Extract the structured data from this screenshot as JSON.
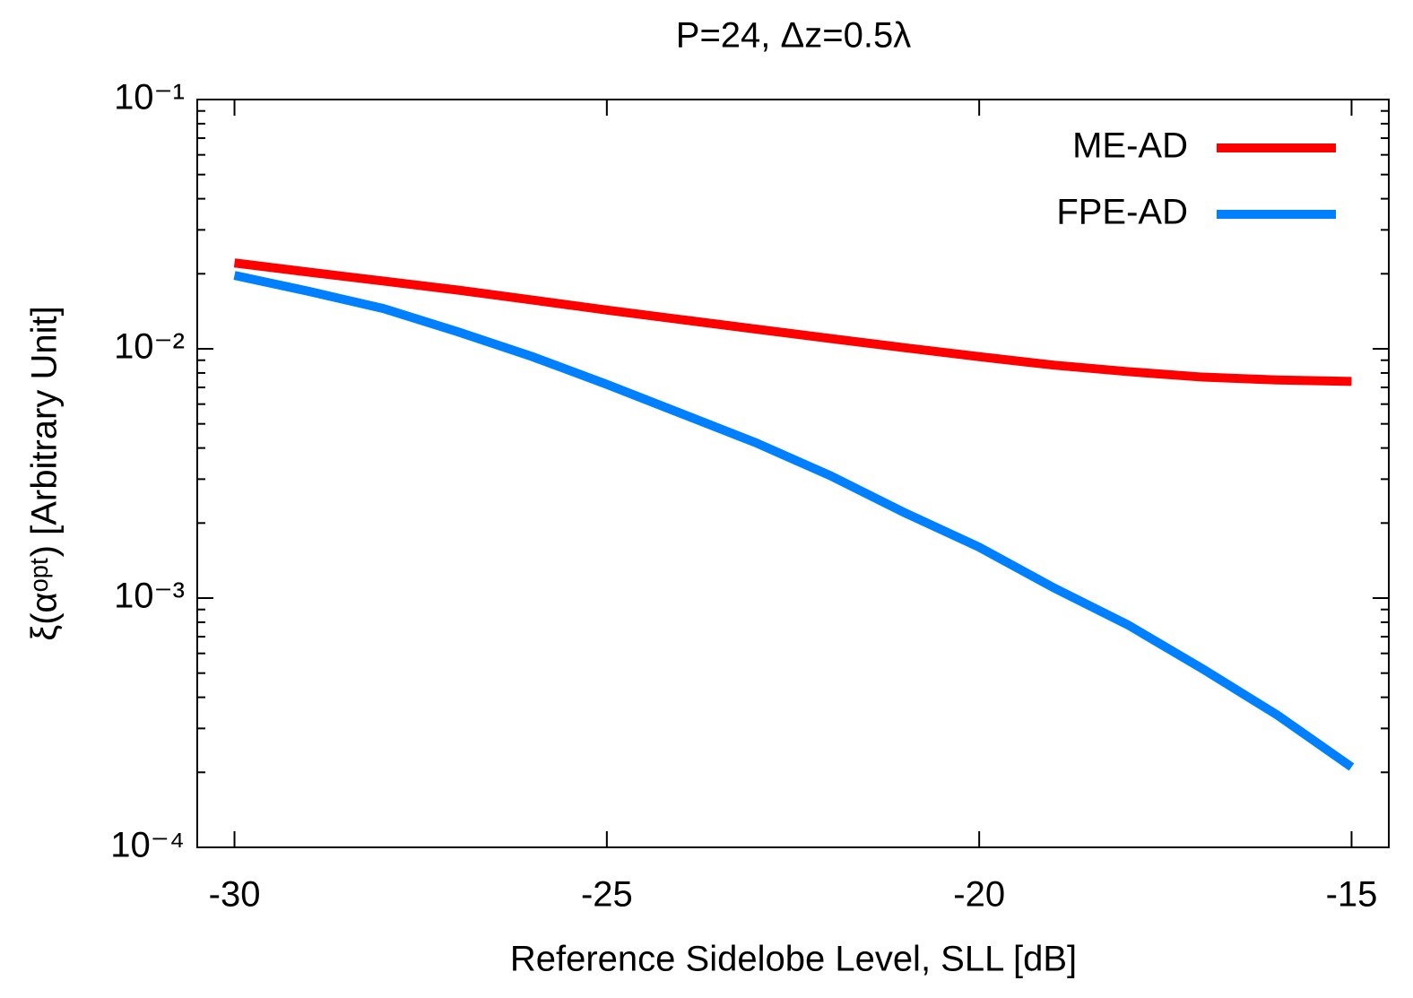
{
  "chart_data": {
    "type": "line",
    "title": "P=24, Δz=0.5λ",
    "x_label": "Reference Sidelobe Level, SLL [dB]",
    "y_label": "ξ(αᵒᵖᵗ) [Arbitrary Unit]",
    "x": [
      -30,
      -29,
      -28,
      -27,
      -26,
      -25,
      -24,
      -23,
      -22,
      -21,
      -20,
      -19,
      -18,
      -17,
      -16,
      -15
    ],
    "series": [
      {
        "name": "ME-AD",
        "color": "#ff0000",
        "values": [
          0.0221,
          0.0203,
          0.0187,
          0.0172,
          0.0157,
          0.0143,
          0.0131,
          0.012,
          0.011,
          0.0101,
          0.0093,
          0.0086,
          0.0081,
          0.0077,
          0.0075,
          0.0074
        ]
      },
      {
        "name": "FPE-AD",
        "color": "#0080ff",
        "values": [
          0.0197,
          0.017,
          0.0145,
          0.0117,
          0.0093,
          0.0072,
          0.0055,
          0.0042,
          0.0031,
          0.0022,
          0.0016,
          0.0011,
          0.00078,
          0.00052,
          0.00034,
          0.00021
        ]
      }
    ],
    "xlim": [
      -30.5,
      -14.5
    ],
    "xticks": [
      -30,
      -25,
      -20,
      -15
    ],
    "ylim": [
      0.0001,
      0.1
    ],
    "yticks": [
      {
        "value": 0.0001,
        "label": "10⁻⁴"
      },
      {
        "value": 0.001,
        "label": "10⁻³"
      },
      {
        "value": 0.01,
        "label": "10⁻²"
      },
      {
        "value": 0.1,
        "label": "10⁻¹"
      }
    ],
    "minor_yticks": [
      0.0002,
      0.0003,
      0.0004,
      0.0005,
      0.0006,
      0.0007,
      0.0008,
      0.0009,
      0.002,
      0.003,
      0.004,
      0.005,
      0.006,
      0.007,
      0.008,
      0.009,
      0.02,
      0.03,
      0.04,
      0.05,
      0.06,
      0.07,
      0.08,
      0.09
    ],
    "log_y": true,
    "grid": false,
    "legend": "upper right"
  }
}
